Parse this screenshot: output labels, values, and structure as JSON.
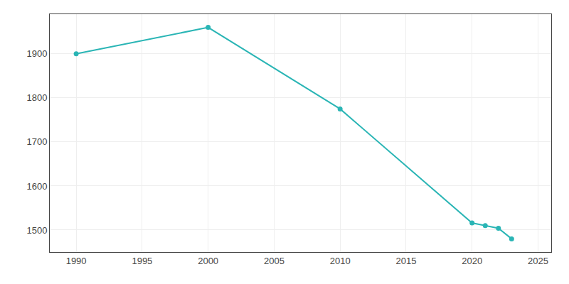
{
  "chart_data": {
    "type": "line",
    "x": [
      1990,
      2000,
      2010,
      2020,
      2021,
      2022,
      2023
    ],
    "values": [
      1900,
      1960,
      1775,
      1516,
      1510,
      1504,
      1480
    ],
    "color": "#2ab5b5",
    "marker": "circle",
    "xlim": [
      1988,
      2026
    ],
    "ylim": [
      1450,
      1990
    ],
    "xticks": [
      1990,
      1995,
      2000,
      2005,
      2010,
      2015,
      2020,
      2025
    ],
    "yticks": [
      1500,
      1600,
      1700,
      1800,
      1900
    ],
    "grid": true
  }
}
